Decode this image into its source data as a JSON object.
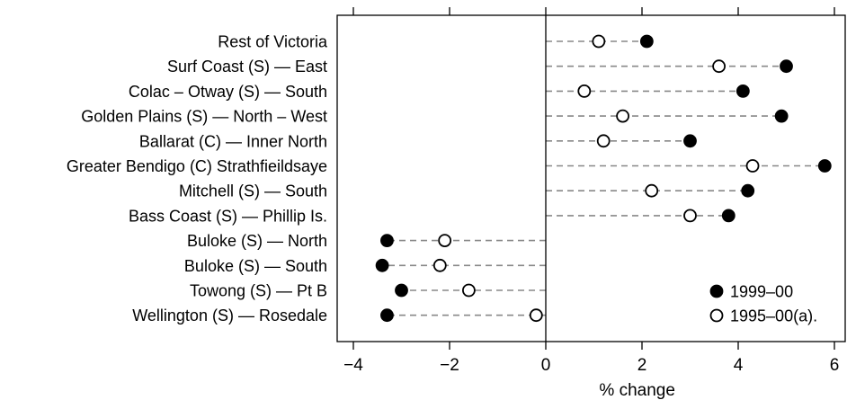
{
  "chart_data": {
    "type": "scatter",
    "subtype": "dot-plot",
    "xlabel": "% change",
    "xlim": [
      -4.3,
      6.3
    ],
    "xticks": [
      -4,
      -2,
      0,
      2,
      4,
      6
    ],
    "xtick_labels": [
      "−4",
      "−2",
      "0",
      "2",
      "4",
      "6"
    ],
    "grid": false,
    "legend_position": "bottom-right",
    "categories": [
      "Rest of Victoria",
      "Surf Coast (S) — East",
      "Colac – Otway (S) — South",
      "Golden Plains (S) — North – West",
      "Ballarat (C) — Inner North",
      "Greater Bendigo (C) Strathfieildsaye",
      "Mitchell (S) — South",
      "Bass Coast (S) — Phillip Is.",
      "Buloke (S) — North",
      "Buloke (S) — South",
      "Towong (S) — Pt B",
      "Wellington (S) — Rosedale"
    ],
    "series": [
      {
        "name": "1999–00",
        "marker": "filled-circle",
        "values": [
          2.1,
          5.0,
          4.1,
          4.9,
          3.0,
          5.8,
          4.2,
          3.8,
          -3.3,
          -3.4,
          -3.0,
          -3.3
        ]
      },
      {
        "name": "1995–00(a).",
        "marker": "open-circle",
        "values": [
          1.1,
          3.6,
          0.8,
          1.6,
          1.2,
          4.3,
          2.2,
          3.0,
          -2.1,
          -2.2,
          -1.6,
          -0.2
        ]
      }
    ]
  },
  "colors": {
    "marker": "#000000",
    "leader_line": "#888888"
  }
}
